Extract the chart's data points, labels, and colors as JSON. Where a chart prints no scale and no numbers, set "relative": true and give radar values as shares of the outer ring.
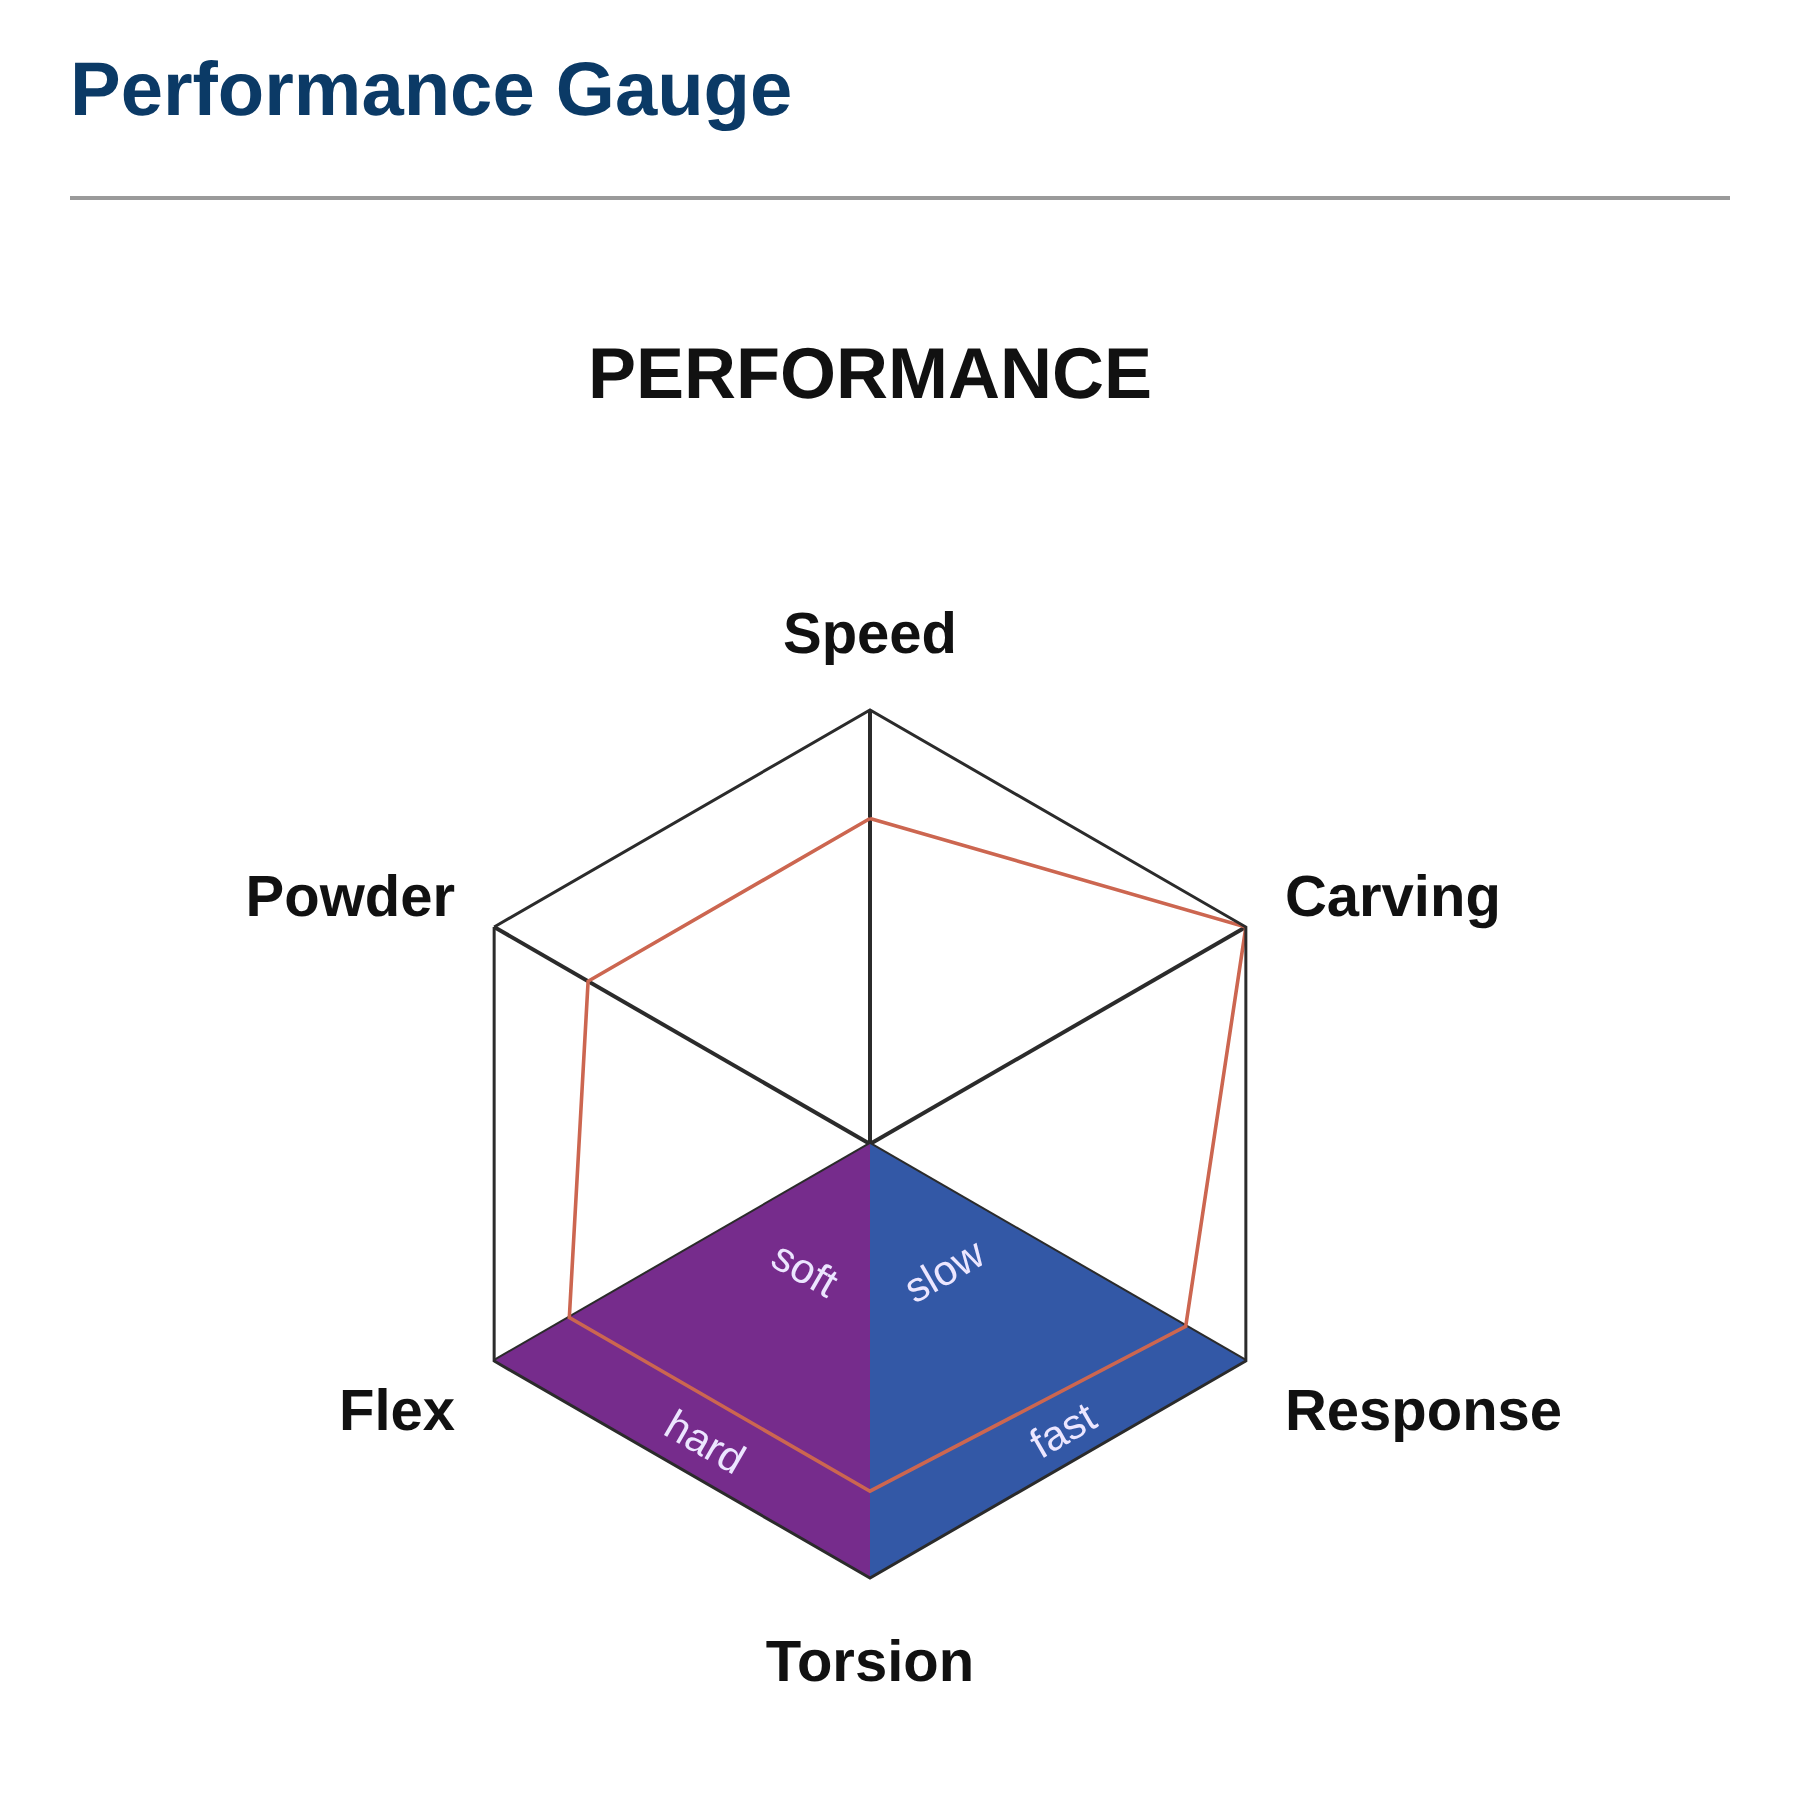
{
  "chart_data": {
    "type": "radar",
    "title": "Performance Gauge",
    "subtitle": "PERFORMANCE",
    "categories": [
      "Speed",
      "Carving",
      "Response",
      "Torsion",
      "Flex",
      "Powder"
    ],
    "relative": true,
    "series": [
      {
        "type": "area",
        "color": "#762c8c",
        "values": [
          0,
          0,
          0,
          1,
          1,
          0
        ]
      },
      {
        "type": "area",
        "color": "#3358a6",
        "values": [
          0,
          0,
          1,
          1,
          0,
          0
        ]
      },
      {
        "color": "#cc6650",
        "values": [
          0.75,
          1,
          0.84,
          0.8,
          0.8,
          0.75
        ]
      }
    ],
    "annotations": [
      "soft",
      "slow",
      "hard",
      "fast"
    ],
    "grid": "x",
    "line_style": "solid"
  }
}
